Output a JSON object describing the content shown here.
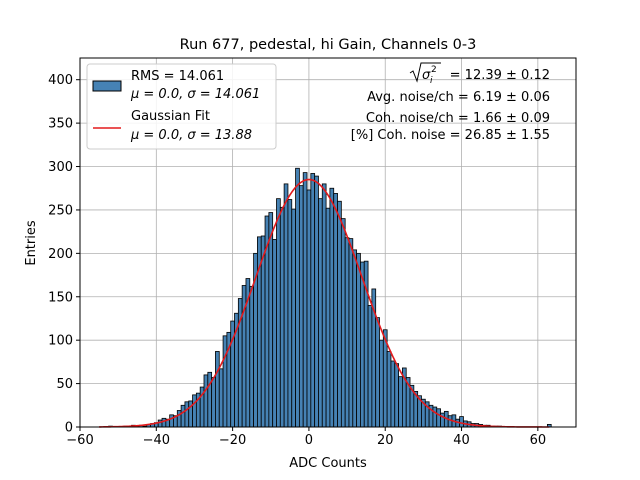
{
  "chart_data": {
    "type": "bar",
    "title": "Run 677, pedestal, hi Gain, Channels 0-3",
    "xlabel": "ADC Counts",
    "ylabel": "Entries",
    "xlim": [
      -60,
      70
    ],
    "ylim": [
      0,
      425
    ],
    "xticks": [
      -60,
      -40,
      -20,
      0,
      20,
      40,
      60
    ],
    "yticks": [
      0,
      50,
      100,
      150,
      200,
      250,
      300,
      350,
      400
    ],
    "grid": true,
    "legend_position": "top-left",
    "bin_width": 1,
    "histogram": {
      "name": "RMS = 14.061",
      "name_line2": "μ = 0.0, σ = 14.061",
      "color": "#4682b4",
      "bins": [
        {
          "x": -55,
          "count": 0
        },
        {
          "x": -54,
          "count": 0
        },
        {
          "x": -53,
          "count": 0
        },
        {
          "x": -52,
          "count": 1
        },
        {
          "x": -51,
          "count": 0
        },
        {
          "x": -50,
          "count": 0
        },
        {
          "x": -49,
          "count": 0
        },
        {
          "x": -48,
          "count": 1
        },
        {
          "x": -47,
          "count": 0
        },
        {
          "x": -46,
          "count": 2
        },
        {
          "x": -45,
          "count": 1
        },
        {
          "x": -44,
          "count": 2
        },
        {
          "x": -43,
          "count": 1
        },
        {
          "x": -42,
          "count": 3
        },
        {
          "x": -41,
          "count": 4
        },
        {
          "x": -40,
          "count": 5
        },
        {
          "x": -39,
          "count": 8
        },
        {
          "x": -38,
          "count": 10
        },
        {
          "x": -37,
          "count": 9
        },
        {
          "x": -36,
          "count": 14
        },
        {
          "x": -35,
          "count": 13
        },
        {
          "x": -34,
          "count": 19
        },
        {
          "x": -33,
          "count": 25
        },
        {
          "x": -32,
          "count": 29
        },
        {
          "x": -31,
          "count": 30
        },
        {
          "x": -30,
          "count": 37
        },
        {
          "x": -29,
          "count": 39
        },
        {
          "x": -28,
          "count": 46
        },
        {
          "x": -27,
          "count": 60
        },
        {
          "x": -26,
          "count": 63
        },
        {
          "x": -25,
          "count": 57
        },
        {
          "x": -24,
          "count": 87
        },
        {
          "x": -23,
          "count": 67
        },
        {
          "x": -22,
          "count": 105
        },
        {
          "x": -21,
          "count": 109
        },
        {
          "x": -20,
          "count": 122
        },
        {
          "x": -19,
          "count": 131
        },
        {
          "x": -18,
          "count": 148
        },
        {
          "x": -17,
          "count": 163
        },
        {
          "x": -16,
          "count": 171
        },
        {
          "x": -15,
          "count": 162
        },
        {
          "x": -14,
          "count": 200
        },
        {
          "x": -13,
          "count": 219
        },
        {
          "x": -12,
          "count": 220
        },
        {
          "x": -11,
          "count": 243
        },
        {
          "x": -10,
          "count": 247
        },
        {
          "x": -9,
          "count": 216
        },
        {
          "x": -8,
          "count": 263
        },
        {
          "x": -7,
          "count": 253
        },
        {
          "x": -6,
          "count": 280
        },
        {
          "x": -5,
          "count": 262
        },
        {
          "x": -4,
          "count": 251
        },
        {
          "x": -3,
          "count": 298
        },
        {
          "x": -2,
          "count": 278
        },
        {
          "x": -1,
          "count": 293
        },
        {
          "x": 0,
          "count": 273
        },
        {
          "x": 1,
          "count": 292
        },
        {
          "x": 2,
          "count": 289
        },
        {
          "x": 3,
          "count": 263
        },
        {
          "x": 4,
          "count": 280
        },
        {
          "x": 5,
          "count": 252
        },
        {
          "x": 6,
          "count": 275
        },
        {
          "x": 7,
          "count": 269
        },
        {
          "x": 8,
          "count": 260
        },
        {
          "x": 9,
          "count": 240
        },
        {
          "x": 10,
          "count": 218
        },
        {
          "x": 11,
          "count": 217
        },
        {
          "x": 12,
          "count": 204
        },
        {
          "x": 13,
          "count": 200
        },
        {
          "x": 14,
          "count": 190
        },
        {
          "x": 15,
          "count": 191
        },
        {
          "x": 16,
          "count": 140
        },
        {
          "x": 17,
          "count": 159
        },
        {
          "x": 18,
          "count": 126
        },
        {
          "x": 19,
          "count": 100
        },
        {
          "x": 20,
          "count": 112
        },
        {
          "x": 21,
          "count": 87
        },
        {
          "x": 22,
          "count": 76
        },
        {
          "x": 23,
          "count": 73
        },
        {
          "x": 24,
          "count": 58
        },
        {
          "x": 25,
          "count": 68
        },
        {
          "x": 26,
          "count": 57
        },
        {
          "x": 27,
          "count": 48
        },
        {
          "x": 28,
          "count": 41
        },
        {
          "x": 29,
          "count": 36
        },
        {
          "x": 30,
          "count": 32
        },
        {
          "x": 31,
          "count": 29
        },
        {
          "x": 32,
          "count": 25
        },
        {
          "x": 33,
          "count": 23
        },
        {
          "x": 34,
          "count": 21
        },
        {
          "x": 35,
          "count": 16
        },
        {
          "x": 36,
          "count": 18
        },
        {
          "x": 37,
          "count": 13
        },
        {
          "x": 38,
          "count": 14
        },
        {
          "x": 39,
          "count": 9
        },
        {
          "x": 40,
          "count": 12
        },
        {
          "x": 41,
          "count": 7
        },
        {
          "x": 42,
          "count": 6
        },
        {
          "x": 43,
          "count": 4
        },
        {
          "x": 44,
          "count": 4
        },
        {
          "x": 45,
          "count": 3
        },
        {
          "x": 46,
          "count": 2
        },
        {
          "x": 47,
          "count": 2
        },
        {
          "x": 48,
          "count": 1
        },
        {
          "x": 49,
          "count": 1
        },
        {
          "x": 50,
          "count": 1
        },
        {
          "x": 51,
          "count": 0
        },
        {
          "x": 52,
          "count": 0
        },
        {
          "x": 53,
          "count": 0
        },
        {
          "x": 54,
          "count": 0
        },
        {
          "x": 55,
          "count": 0
        },
        {
          "x": 56,
          "count": 0
        },
        {
          "x": 57,
          "count": 0
        },
        {
          "x": 58,
          "count": 0
        },
        {
          "x": 59,
          "count": 0
        },
        {
          "x": 60,
          "count": 0
        },
        {
          "x": 61,
          "count": 0
        },
        {
          "x": 62,
          "count": 0
        },
        {
          "x": 63,
          "count": 3
        }
      ]
    },
    "fit": {
      "name": "Gaussian Fit",
      "name_line2": "μ = 0.0, σ = 13.88",
      "color": "#e31a1c",
      "mu": 0.0,
      "sigma": 13.88,
      "peak": 285,
      "x_range": [
        -55,
        63
      ]
    },
    "annotations": {
      "sigma_line_value": "= 12.39 ± 0.12",
      "avg_noise": "Avg. noise/ch = 6.19 ± 0.06",
      "coh_noise": "Coh. noise/ch = 1.66 ± 0.09",
      "coh_noise_pct": "[%] Coh. noise = 26.85 ± 1.55"
    }
  }
}
